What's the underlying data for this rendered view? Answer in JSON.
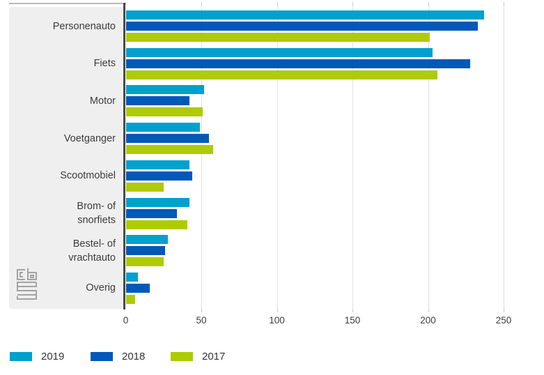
{
  "chart_data": {
    "type": "bar",
    "orientation": "horizontal",
    "title": "",
    "xlabel": "",
    "ylabel": "",
    "xlim": [
      0,
      250
    ],
    "xticks": [
      0,
      50,
      100,
      150,
      200,
      250
    ],
    "grid": true,
    "legend_position": "bottom",
    "categories": [
      "Personenauto",
      "Fiets",
      "Motor",
      "Voetganger",
      "Scootmobiel",
      "Brom- of snorfiets",
      "Bestel- of vrachtauto",
      "Overig"
    ],
    "category_lines": [
      [
        "Personenauto"
      ],
      [
        "Fiets"
      ],
      [
        "Motor"
      ],
      [
        "Voetganger"
      ],
      [
        "Scootmobiel"
      ],
      [
        "Brom- of",
        "snorfiets"
      ],
      [
        "Bestel- of",
        "vrachtauto"
      ],
      [
        "Overig"
      ]
    ],
    "series": [
      {
        "name": "2019",
        "color": "#00a1cd",
        "values": [
          237,
          203,
          52,
          49,
          42,
          42,
          28,
          8
        ]
      },
      {
        "name": "2018",
        "color": "#0058b8",
        "values": [
          233,
          228,
          42,
          55,
          44,
          34,
          26,
          16
        ]
      },
      {
        "name": "2017",
        "color": "#afcb05",
        "values": [
          201,
          206,
          51,
          58,
          25,
          41,
          25,
          6
        ]
      }
    ]
  },
  "legend": {
    "items": [
      {
        "label": "2019",
        "color": "#00a1cd"
      },
      {
        "label": "2018",
        "color": "#0058b8"
      },
      {
        "label": "2017",
        "color": "#afcb05"
      }
    ]
  },
  "logo": {
    "name": "cbs-logo"
  },
  "colors": {
    "panel": "#efefef",
    "axis": "#4a4a4a",
    "gridline": "#e0e0e0",
    "text": "#3c3c3c"
  }
}
